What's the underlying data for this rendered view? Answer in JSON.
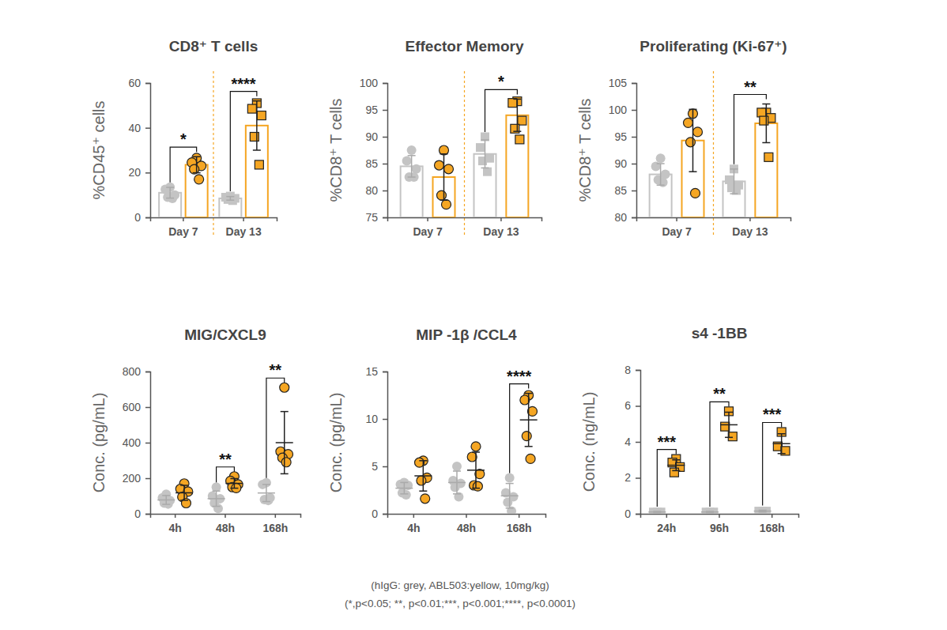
{
  "chart_data": [
    {
      "type": "bar",
      "title": "CD8⁺ T cells",
      "y_label": "%CD45⁺ cells",
      "categories": [
        "Day 7",
        "Day 13"
      ],
      "ylim": [
        0,
        60
      ],
      "yticks": [
        0,
        20,
        40,
        60
      ],
      "significance": [
        "*",
        "****"
      ],
      "series": [
        {
          "color": "#c4c4c4",
          "marker": "circle",
          "values": [
            11,
            null
          ],
          "errors": [
            2.4,
            null
          ],
          "points": [
            [
              13.5,
              12.5,
              10,
              9,
              8.5
            ],
            null
          ]
        },
        {
          "color": "#f5a623",
          "marker": "circle",
          "values": [
            23.5,
            null
          ],
          "errors": [
            3.6,
            null
          ],
          "points": [
            [
              26.5,
              24.5,
              23,
              21.5,
              17
            ],
            null
          ]
        },
        {
          "color": "#c4c4c4",
          "marker": "square",
          "values": [
            null,
            8.5
          ],
          "errors": [
            null,
            0.8
          ],
          "points": [
            null,
            [
              9.5,
              9,
              8.5,
              8,
              7.5
            ]
          ]
        },
        {
          "color": "#f5a623",
          "marker": "square",
          "values": [
            null,
            41
          ],
          "errors": [
            null,
            11
          ],
          "points": [
            null,
            [
              51,
              48.5,
              45.5,
              36,
              23.5
            ]
          ]
        }
      ]
    },
    {
      "type": "bar",
      "title": "Effector Memory",
      "y_label": "%CD8⁺ T cells",
      "categories": [
        "Day 7",
        "Day 13"
      ],
      "ylim": [
        75,
        100
      ],
      "yticks": [
        75,
        80,
        85,
        90,
        95,
        100
      ],
      "significance": [
        null,
        "*"
      ],
      "series": [
        {
          "color": "#c4c4c4",
          "marker": "circle",
          "values": [
            84.5,
            null
          ],
          "errors": [
            2,
            null
          ],
          "points": [
            [
              87.5,
              85.5,
              84,
              82.5,
              82.5
            ],
            null
          ]
        },
        {
          "color": "#f5a623",
          "marker": "circle",
          "values": [
            82.5,
            null
          ],
          "errors": [
            4.3,
            null
          ],
          "points": [
            [
              87.5,
              84.7,
              84,
              79.1,
              77.4
            ],
            null
          ]
        },
        {
          "color": "#c4c4c4",
          "marker": "square",
          "values": [
            null,
            86.8
          ],
          "errors": [
            null,
            2.6
          ],
          "points": [
            null,
            [
              90,
              88,
              86,
              85.5,
              83.5
            ]
          ]
        },
        {
          "color": "#f5a623",
          "marker": "square",
          "values": [
            null,
            94
          ],
          "errors": [
            null,
            3
          ],
          "points": [
            null,
            [
              96.6,
              96.3,
              93,
              91.5,
              89.5
            ]
          ]
        }
      ]
    },
    {
      "type": "bar",
      "title": "Proliferating (Ki-67⁺)",
      "y_label": "%CD8⁺ T cells",
      "categories": [
        "Day 7",
        "Day 13"
      ],
      "ylim": [
        80,
        105
      ],
      "yticks": [
        80,
        85,
        90,
        95,
        100,
        105
      ],
      "significance": [
        null,
        "**"
      ],
      "series": [
        {
          "color": "#c4c4c4",
          "marker": "circle",
          "values": [
            88,
            null
          ],
          "errors": [
            2,
            null
          ],
          "points": [
            [
              91,
              89.5,
              88,
              87,
              86.5
            ],
            null
          ]
        },
        {
          "color": "#f5a623",
          "marker": "circle",
          "values": [
            94.3,
            null
          ],
          "errors": [
            5.8,
            null
          ],
          "points": [
            [
              99.3,
              97.6,
              95.9,
              94,
              84.5
            ],
            null
          ]
        },
        {
          "color": "#c4c4c4",
          "marker": "square",
          "values": [
            null,
            86.7
          ],
          "errors": [
            null,
            2.3
          ],
          "points": [
            null,
            [
              89,
              87,
              86,
              85.5,
              85
            ]
          ]
        },
        {
          "color": "#f5a623",
          "marker": "square",
          "values": [
            null,
            97.5
          ],
          "errors": [
            null,
            3.6
          ],
          "points": [
            null,
            [
              99.5,
              99.5,
              98.5,
              98,
              91.2
            ]
          ]
        }
      ]
    },
    {
      "type": "scatter",
      "title": "MIG/CXCL9",
      "y_label": "Conc.  (pg/mL)",
      "categories": [
        "4h",
        "48h",
        "168h"
      ],
      "ylim": [
        0,
        800
      ],
      "yticks": [
        0,
        200,
        400,
        600,
        800
      ],
      "significance": [
        null,
        "**",
        "**"
      ],
      "series": [
        {
          "color": "#c4c4c4",
          "marker": "circle",
          "values": [
            78,
            85,
            117
          ],
          "errors": [
            25,
            43,
            48
          ],
          "points": [
            [
              110,
              90,
              75,
              60,
              55
            ],
            [
              150,
              100,
              85,
              60,
              30
            ],
            [
              175,
              165,
              90,
              80,
              75
            ]
          ]
        },
        {
          "color": "#f5a623",
          "marker": "circle",
          "values": [
            118,
            171,
            400
          ],
          "errors": [
            42,
            27,
            175
          ],
          "points": [
            [
              170,
              140,
              125,
              95,
              60
            ],
            [
              210,
              185,
              165,
              150,
              145
            ],
            [
              710,
              350,
              335,
              315,
              290
            ]
          ]
        }
      ]
    },
    {
      "type": "scatter",
      "title": "MIP -1β /CCL4",
      "y_label": "Conc.  (pg/mL)",
      "categories": [
        "4h",
        "48h",
        "168h"
      ],
      "ylim": [
        0,
        15
      ],
      "yticks": [
        0,
        5,
        10,
        15
      ],
      "significance": [
        null,
        null,
        "****"
      ],
      "series": [
        {
          "color": "#c4c4c4",
          "marker": "circle",
          "values": [
            2.7,
            3.3,
            1.9
          ],
          "errors": [
            0.6,
            1.2,
            1.3
          ],
          "points": [
            [
              3.3,
              3.1,
              3,
              2.2,
              2
            ],
            [
              5,
              3.5,
              3.2,
              2.8,
              1.8
            ],
            [
              3.8,
              2.2,
              1.8,
              1.2,
              0.3
            ]
          ]
        },
        {
          "color": "#f5a623",
          "marker": "circle",
          "values": [
            4,
            4.6,
            9.9
          ],
          "errors": [
            1.6,
            1.9,
            2.8
          ],
          "points": [
            [
              5.6,
              5.4,
              3.8,
              3.5,
              1.6
            ],
            [
              7.1,
              6,
              4.2,
              3,
              2.9
            ],
            [
              12.5,
              12,
              10.8,
              8.2,
              5.8
            ]
          ]
        }
      ]
    },
    {
      "type": "scatter",
      "title": "s4 -1BB",
      "y_label": "Conc.  (ng/mL)",
      "categories": [
        "24h",
        "96h",
        "168h"
      ],
      "ylim": [
        0,
        8
      ],
      "yticks": [
        0,
        2,
        4,
        6,
        8
      ],
      "significance": [
        "***",
        "**",
        "***"
      ],
      "series": [
        {
          "color": "#c4c4c4",
          "marker": "square",
          "values": [
            0.1,
            0.1,
            0.15
          ],
          "errors": [
            0.03,
            0.03,
            0.05
          ],
          "points": [
            [
              0.1,
              0.1,
              0.1
            ],
            [
              0.1,
              0.1,
              0.1
            ],
            [
              0.15,
              0.15,
              0.15
            ]
          ]
        },
        {
          "color": "#f5a623",
          "marker": "square",
          "values": [
            2.7,
            4.95,
            3.9
          ],
          "errors": [
            0.3,
            0.7,
            0.55
          ],
          "points": [
            [
              3.05,
              2.85,
              2.6,
              2.3
            ],
            [
              5.7,
              4.85,
              4.3
            ],
            [
              4.55,
              3.75,
              3.5
            ]
          ]
        }
      ]
    }
  ],
  "caption": [
    "(hIgG: grey, ABL503:yellow, 10mg/kg)",
    "(*,p<0.05; **, p<0.01;***, p<0.001;****, p<0.0001)"
  ]
}
